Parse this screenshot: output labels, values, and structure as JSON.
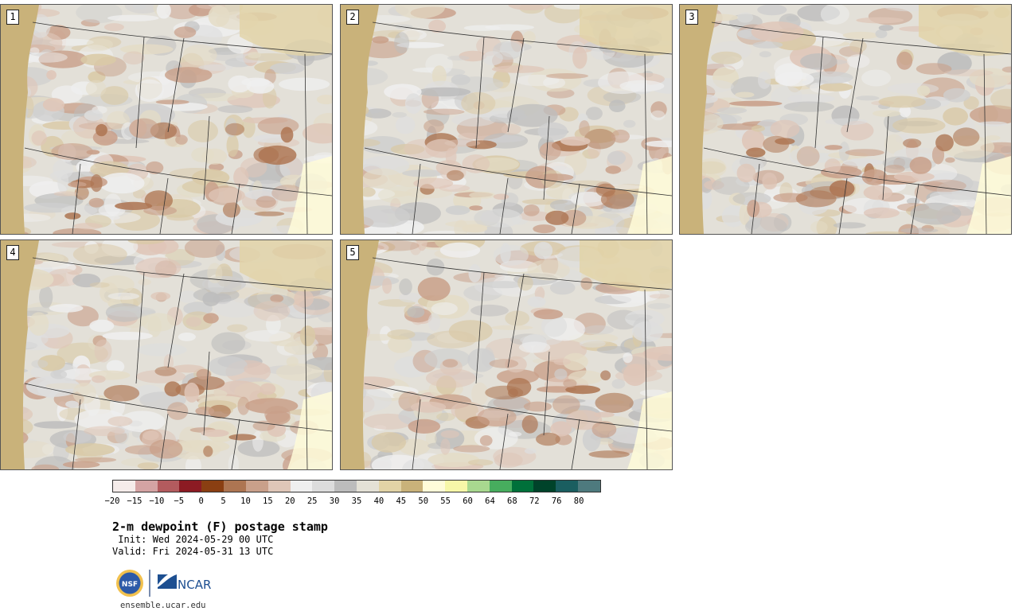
{
  "panels": [
    {
      "label": "1"
    },
    {
      "label": "2"
    },
    {
      "label": "3"
    },
    {
      "label": "4"
    },
    {
      "label": "5"
    }
  ],
  "colorbar": {
    "ticks": [
      "−20",
      "−15",
      "−10",
      "−5",
      "0",
      "5",
      "10",
      "15",
      "20",
      "25",
      "30",
      "35",
      "40",
      "45",
      "50",
      "55",
      "60",
      "64",
      "68",
      "72",
      "76",
      "80"
    ],
    "colors": [
      "#f5ecea",
      "#d4a3a3",
      "#b35b5e",
      "#8c1b23",
      "#8a3f12",
      "#ad7552",
      "#c9a08a",
      "#dfc6b8",
      "#efefef",
      "#dcdcdc",
      "#bcbcbc",
      "#e4e1d6",
      "#e2d3a6",
      "#c9b27a",
      "#fffcd9",
      "#f7f7a8",
      "#a8d88f",
      "#47ad5e",
      "#00703a",
      "#00432a",
      "#1a5e60",
      "#4e7a7e"
    ]
  },
  "title": "2-m dewpoint (F) postage stamp",
  "init": " Init: Wed 2024-05-29 00 UTC",
  "valid": "Valid: Fri 2024-05-31 13 UTC",
  "logos": {
    "nsf": "NSF",
    "ncar": "NCAR"
  },
  "site": "ensemble.ucar.edu"
}
